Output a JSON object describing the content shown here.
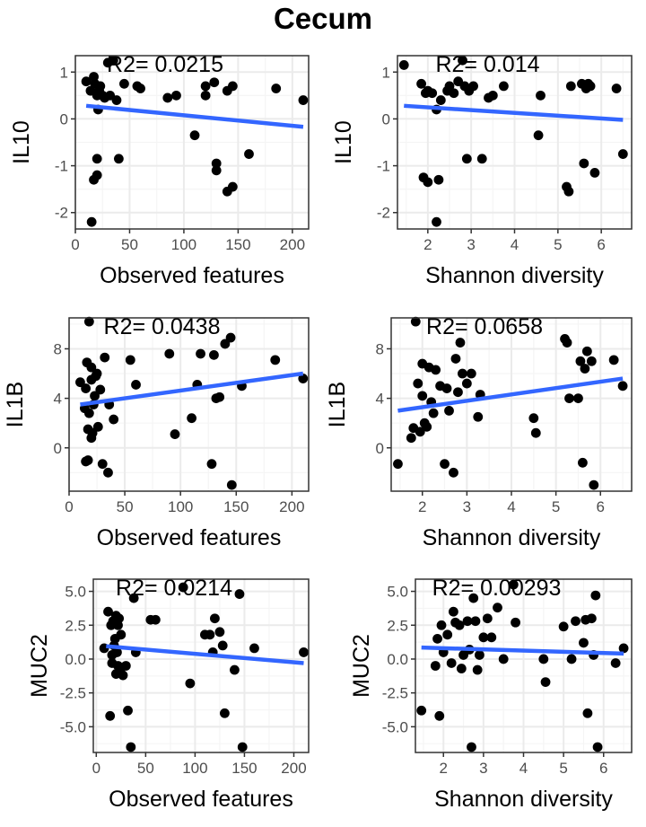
{
  "title": "Cecum",
  "colors": {
    "point": "#000000",
    "fit_line": "#3366ff",
    "panel_border": "#333333",
    "grid_major": "#ebebeb",
    "grid_minor": "#f5f5f5",
    "background": "#ffffff"
  },
  "chart_data": [
    {
      "type": "scatter",
      "xlabel": "Observed features",
      "ylabel": "IL10",
      "annotation": "R2= 0.0215",
      "xlim": [
        0,
        215
      ],
      "ylim": [
        -2.35,
        1.35
      ],
      "xticks": [
        0,
        50,
        100,
        150,
        200
      ],
      "yticks": [
        -2,
        -1,
        0,
        1
      ],
      "grid": true,
      "fit": [
        [
          10,
          0.28
        ],
        [
          210,
          -0.17
        ]
      ],
      "x": [
        10,
        14,
        15,
        17,
        17,
        18,
        20,
        20,
        20,
        21,
        22,
        23,
        25,
        27,
        30,
        32,
        35,
        38,
        40,
        45,
        57,
        60,
        85,
        93,
        110,
        120,
        120,
        128,
        130,
        130,
        140,
        140,
        145,
        145,
        160,
        185,
        210
      ],
      "y": [
        0.8,
        0.6,
        -2.2,
        0.9,
        -1.3,
        0.75,
        -1.2,
        0.5,
        -0.85,
        0.2,
        0.6,
        0.7,
        0.5,
        0.45,
        1.2,
        0.5,
        1.25,
        0.4,
        -0.85,
        0.75,
        0.7,
        0.65,
        0.45,
        0.5,
        -0.35,
        0.5,
        0.7,
        0.78,
        -0.95,
        -1.1,
        -1.55,
        0.6,
        -1.45,
        0.7,
        -0.75,
        0.65,
        0.4
      ]
    },
    {
      "type": "scatter",
      "xlabel": "Shannon diversity",
      "ylabel": "IL10",
      "annotation": "R2= 0.014",
      "xlim": [
        1.3,
        6.7
      ],
      "ylim": [
        -2.35,
        1.35
      ],
      "xticks": [
        2,
        3,
        4,
        5,
        6
      ],
      "yticks": [
        -2,
        -1,
        0,
        1
      ],
      "grid": true,
      "fit": [
        [
          1.45,
          0.28
        ],
        [
          6.5,
          -0.02
        ]
      ],
      "x": [
        1.45,
        1.85,
        1.9,
        1.95,
        2.0,
        2.0,
        2.1,
        2.2,
        2.2,
        2.25,
        2.3,
        2.45,
        2.5,
        2.6,
        2.7,
        2.8,
        2.85,
        2.9,
        2.95,
        3.05,
        3.25,
        3.4,
        3.5,
        3.75,
        4.55,
        4.6,
        5.2,
        5.25,
        5.3,
        5.55,
        5.6,
        5.65,
        5.7,
        5.75,
        5.85,
        6.35,
        6.5
      ],
      "y": [
        1.15,
        0.75,
        -1.25,
        0.55,
        -1.35,
        0.6,
        0.55,
        -2.2,
        0.2,
        -1.3,
        0.4,
        0.6,
        0.7,
        0.55,
        0.8,
        1.25,
        0.7,
        -0.85,
        0.6,
        0.7,
        -0.85,
        0.45,
        0.5,
        0.7,
        -0.35,
        0.5,
        -1.45,
        -1.55,
        0.7,
        0.75,
        -0.95,
        0.65,
        0.75,
        0.7,
        -1.15,
        0.65,
        -0.75
      ]
    },
    {
      "type": "scatter",
      "xlabel": "Observed features",
      "ylabel": "IL1B",
      "annotation": "R2= 0.0438",
      "xlim": [
        0,
        215
      ],
      "ylim": [
        -3.5,
        10.5
      ],
      "xticks": [
        0,
        50,
        100,
        150,
        200
      ],
      "yticks": [
        0,
        4,
        8
      ],
      "grid": true,
      "fit": [
        [
          10,
          3.5
        ],
        [
          210,
          6.0
        ]
      ],
      "x": [
        10,
        14,
        15,
        15,
        16,
        17,
        17,
        18,
        18,
        20,
        20,
        20,
        21,
        22,
        23,
        24,
        25,
        26,
        28,
        30,
        32,
        35,
        36,
        40,
        55,
        60,
        90,
        95,
        110,
        115,
        118,
        128,
        130,
        132,
        135,
        140,
        145,
        146,
        155,
        185,
        210
      ],
      "y": [
        5.3,
        3.2,
        -1.1,
        4.8,
        6.9,
        1.5,
        -1.0,
        2.8,
        10.2,
        0.8,
        6.5,
        5.5,
        1.2,
        3.5,
        4.2,
        5.8,
        6.0,
        1.7,
        4.7,
        -1.3,
        7.3,
        -2.0,
        3.5,
        2.3,
        7.1,
        5.1,
        7.6,
        1.1,
        2.4,
        5.1,
        7.6,
        -1.3,
        7.5,
        4.0,
        4.1,
        8.4,
        8.9,
        -3.0,
        5.0,
        7.1,
        5.6
      ]
    },
    {
      "type": "scatter",
      "xlabel": "Shannon diversity",
      "ylabel": "IL1B",
      "annotation": "R2= 0.0658",
      "xlim": [
        1.3,
        6.7
      ],
      "ylim": [
        -3.5,
        10.5
      ],
      "xticks": [
        2,
        3,
        4,
        5,
        6
      ],
      "yticks": [
        0,
        4,
        8
      ],
      "grid": true,
      "fit": [
        [
          1.45,
          3.0
        ],
        [
          6.5,
          5.6
        ]
      ],
      "x": [
        1.45,
        1.75,
        1.8,
        1.85,
        1.9,
        1.95,
        2.0,
        2.0,
        2.05,
        2.1,
        2.15,
        2.2,
        2.25,
        2.3,
        2.4,
        2.5,
        2.55,
        2.6,
        2.7,
        2.75,
        2.8,
        2.85,
        2.9,
        3.0,
        3.1,
        3.25,
        3.3,
        4.5,
        4.55,
        5.2,
        5.25,
        5.3,
        5.5,
        5.55,
        5.6,
        5.65,
        5.7,
        5.8,
        5.85,
        6.3,
        6.5
      ],
      "y": [
        -1.3,
        0.8,
        1.6,
        10.2,
        5.2,
        1.3,
        6.8,
        4.2,
        2.0,
        1.7,
        6.5,
        3.7,
        2.8,
        6.3,
        5.0,
        -1.3,
        4.8,
        3.0,
        -2.0,
        7.2,
        4.5,
        8.5,
        6.0,
        5.2,
        6.0,
        2.5,
        4.3,
        2.4,
        1.2,
        8.8,
        8.5,
        4.0,
        4.0,
        7.0,
        -1.2,
        6.4,
        7.8,
        7.0,
        -3.0,
        7.1,
        5.0
      ]
    },
    {
      "type": "scatter",
      "xlabel": "Observed features",
      "ylabel": "MUC2",
      "annotation": "R2= 0.0214",
      "xlim": [
        -3,
        215
      ],
      "ylim": [
        -6.9,
        5.9
      ],
      "xticks": [
        0,
        50,
        100,
        150,
        200
      ],
      "yticks": [
        -5.0,
        -2.5,
        0.0,
        2.5,
        5.0
      ],
      "grid": true,
      "fit": [
        [
          10,
          0.95
        ],
        [
          210,
          -0.3
        ]
      ],
      "x": [
        8,
        12,
        14,
        15,
        16,
        16,
        17,
        18,
        19,
        20,
        20,
        21,
        22,
        22,
        23,
        24,
        25,
        27,
        30,
        32,
        35,
        38,
        40,
        55,
        60,
        88,
        95,
        110,
        115,
        118,
        120,
        125,
        128,
        130,
        140,
        145,
        148,
        160,
        210
      ],
      "y": [
        0.8,
        3.5,
        -4.2,
        2.5,
        0.3,
        -0.3,
        2.8,
        1.0,
        1.5,
        -1.1,
        3.2,
        0.5,
        -0.5,
        2.5,
        3.0,
        -0.8,
        1.8,
        -1.2,
        -0.5,
        -3.8,
        -6.5,
        4.5,
        0.5,
        2.9,
        2.9,
        5.3,
        -1.8,
        1.8,
        1.8,
        0.5,
        3.0,
        2.0,
        1.0,
        -4.0,
        -0.8,
        4.8,
        -6.5,
        0.8,
        0.5
      ]
    },
    {
      "type": "scatter",
      "xlabel": "Shannon diversity",
      "ylabel": "MUC2",
      "annotation": "R2= 0.00293",
      "xlim": [
        1.3,
        6.7
      ],
      "ylim": [
        -6.9,
        5.9
      ],
      "xticks": [
        2,
        3,
        4,
        5,
        6
      ],
      "yticks": [
        -5.0,
        -2.5,
        0.0,
        2.5,
        5.0
      ],
      "grid": true,
      "fit": [
        [
          1.45,
          0.85
        ],
        [
          6.5,
          0.4
        ]
      ],
      "x": [
        1.45,
        1.8,
        1.85,
        1.9,
        1.95,
        2.0,
        2.1,
        2.2,
        2.25,
        2.3,
        2.4,
        2.45,
        2.5,
        2.6,
        2.65,
        2.7,
        2.75,
        2.8,
        2.85,
        2.9,
        3.0,
        3.1,
        3.2,
        3.35,
        3.5,
        3.75,
        3.8,
        4.5,
        4.55,
        5.0,
        5.2,
        5.3,
        5.5,
        5.55,
        5.6,
        5.7,
        5.75,
        5.8,
        5.85,
        6.3,
        6.5
      ],
      "y": [
        -3.8,
        -0.5,
        1.5,
        -4.2,
        2.5,
        0.5,
        1.8,
        -0.3,
        3.5,
        2.7,
        2.5,
        -0.7,
        0.3,
        2.8,
        0.7,
        -6.5,
        4.5,
        2.8,
        -0.8,
        0.3,
        1.6,
        3.0,
        1.6,
        3.8,
        0.0,
        5.5,
        2.7,
        0.0,
        -1.7,
        2.4,
        0.0,
        2.8,
        1.2,
        2.9,
        -4.0,
        3.0,
        0.3,
        4.7,
        -6.5,
        -0.3,
        0.8
      ]
    }
  ]
}
